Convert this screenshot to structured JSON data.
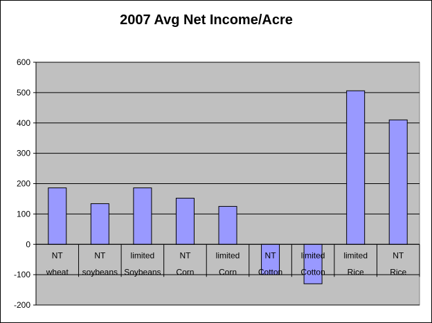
{
  "chart_data": {
    "type": "bar",
    "title": "2007 Avg Net Income/Acre",
    "xlabel": "",
    "ylabel": "",
    "ylim": [
      -200,
      600
    ],
    "yticks": [
      -200,
      -100,
      0,
      100,
      200,
      300,
      400,
      500,
      600
    ],
    "grid": true,
    "legend": "none",
    "categories": [
      [
        "NT",
        "wheat"
      ],
      [
        "NT",
        "soybeans"
      ],
      [
        "limited",
        "Soybeans"
      ],
      [
        "NT",
        "Corn"
      ],
      [
        "limited",
        "Corn"
      ],
      [
        "NT",
        "Cotton"
      ],
      [
        "limited",
        "Cotton"
      ],
      [
        "limited",
        "Rice"
      ],
      [
        "NT",
        "Rice"
      ]
    ],
    "values": [
      186,
      134,
      186,
      152,
      125,
      -100,
      -130,
      506,
      410
    ],
    "colors": {
      "bar": "#9999ff",
      "plot_background": "#c0c0c0",
      "gridline": "#000000"
    }
  }
}
